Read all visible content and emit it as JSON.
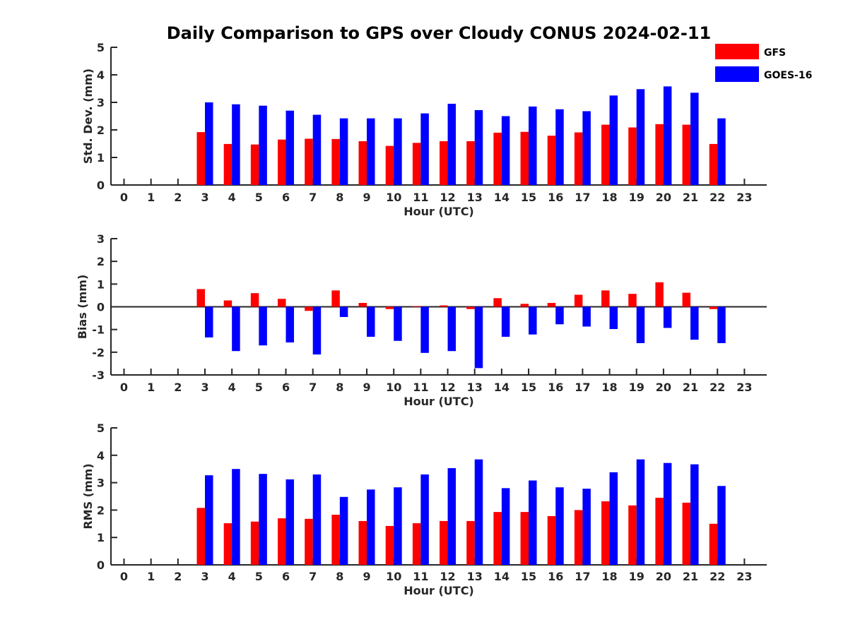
{
  "title": "Daily Comparison to GPS over Cloudy CONUS 2024-02-11",
  "colors": {
    "gfs": "#ff0000",
    "goes": "#0000ff",
    "axis": "#262626"
  },
  "legend": {
    "placement": "top-right",
    "entries": [
      "GFS",
      "GOES-16"
    ]
  },
  "chart_data": [
    {
      "type": "bar",
      "xlabel": "Hour (UTC)",
      "ylabel": "Std. Dev. (mm)",
      "ylim": [
        0,
        5
      ],
      "yticks": [
        "0",
        "1",
        "2",
        "3",
        "4",
        "5"
      ],
      "categories": [
        "0",
        "1",
        "2",
        "3",
        "4",
        "5",
        "6",
        "7",
        "8",
        "9",
        "10",
        "11",
        "12",
        "13",
        "14",
        "15",
        "16",
        "17",
        "18",
        "19",
        "20",
        "21",
        "22",
        "23"
      ],
      "series": [
        {
          "name": "GFS",
          "values": [
            null,
            null,
            null,
            1.92,
            1.49,
            1.47,
            1.65,
            1.68,
            1.67,
            1.59,
            1.42,
            1.53,
            1.59,
            1.59,
            1.9,
            1.93,
            1.79,
            1.91,
            2.19,
            2.09,
            2.21,
            2.19,
            1.49,
            null
          ]
        },
        {
          "name": "GOES-16",
          "values": [
            null,
            null,
            null,
            3.0,
            2.93,
            2.88,
            2.7,
            2.55,
            2.42,
            2.42,
            2.42,
            2.6,
            2.95,
            2.72,
            2.5,
            2.85,
            2.75,
            2.68,
            3.25,
            3.48,
            3.58,
            3.35,
            2.42,
            null
          ]
        }
      ]
    },
    {
      "type": "bar",
      "xlabel": "Hour (UTC)",
      "ylabel": "Bias (mm)",
      "ylim": [
        -3,
        3
      ],
      "yticks": [
        "-3",
        "-2",
        "-1",
        "0",
        "1",
        "2",
        "3"
      ],
      "categories": [
        "0",
        "1",
        "2",
        "3",
        "4",
        "5",
        "6",
        "7",
        "8",
        "9",
        "10",
        "11",
        "12",
        "13",
        "14",
        "15",
        "16",
        "17",
        "18",
        "19",
        "20",
        "21",
        "22",
        "23"
      ],
      "series": [
        {
          "name": "GFS",
          "values": [
            null,
            null,
            null,
            0.78,
            0.28,
            0.6,
            0.35,
            -0.18,
            0.72,
            0.17,
            -0.1,
            0.03,
            0.06,
            -0.1,
            0.38,
            0.13,
            0.17,
            0.53,
            0.72,
            0.57,
            1.08,
            0.62,
            -0.1,
            null
          ]
        },
        {
          "name": "GOES-16",
          "values": [
            null,
            null,
            null,
            -1.35,
            -1.95,
            -1.7,
            -1.57,
            -2.1,
            -0.45,
            -1.32,
            -1.5,
            -2.03,
            -1.95,
            -2.7,
            -1.32,
            -1.22,
            -0.77,
            -0.87,
            -0.98,
            -1.6,
            -0.93,
            -1.45,
            -1.6,
            null
          ]
        }
      ]
    },
    {
      "type": "bar",
      "xlabel": "Hour (UTC)",
      "ylabel": "RMS (mm)",
      "ylim": [
        0,
        5
      ],
      "yticks": [
        "0",
        "1",
        "2",
        "3",
        "4",
        "5"
      ],
      "categories": [
        "0",
        "1",
        "2",
        "3",
        "4",
        "5",
        "6",
        "7",
        "8",
        "9",
        "10",
        "11",
        "12",
        "13",
        "14",
        "15",
        "16",
        "17",
        "18",
        "19",
        "20",
        "21",
        "22",
        "23"
      ],
      "series": [
        {
          "name": "GFS",
          "values": [
            null,
            null,
            null,
            2.08,
            1.52,
            1.58,
            1.7,
            1.68,
            1.83,
            1.6,
            1.42,
            1.52,
            1.6,
            1.6,
            1.93,
            1.93,
            1.78,
            2.0,
            2.32,
            2.17,
            2.45,
            2.27,
            1.5,
            null
          ]
        },
        {
          "name": "GOES-16",
          "values": [
            null,
            null,
            null,
            3.27,
            3.5,
            3.32,
            3.12,
            3.3,
            2.48,
            2.75,
            2.83,
            3.3,
            3.53,
            3.85,
            2.8,
            3.08,
            2.83,
            2.78,
            3.38,
            3.85,
            3.72,
            3.67,
            2.88,
            null
          ]
        }
      ]
    }
  ]
}
